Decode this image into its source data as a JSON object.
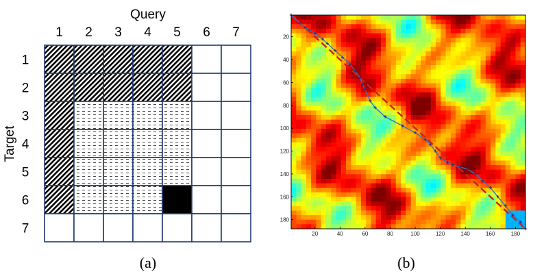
{
  "panel_a": {
    "title": "Query",
    "side_label": "Target",
    "column_labels": [
      "1",
      "2",
      "3",
      "4",
      "5",
      "6",
      "7"
    ],
    "row_labels": [
      "1",
      "2",
      "3",
      "4",
      "5",
      "6",
      "7"
    ],
    "grid_color": "#1f3a6e",
    "caption": "(a)",
    "cells": [
      [
        "hatch",
        "hatch",
        "hatch",
        "hatch",
        "hatch",
        "empty",
        "empty"
      ],
      [
        "hatch",
        "hatch",
        "hatch",
        "hatch",
        "hatch",
        "empty",
        "empty"
      ],
      [
        "hatch",
        "dash",
        "dash",
        "dash",
        "dash",
        "empty",
        "empty"
      ],
      [
        "hatch",
        "dash",
        "dash",
        "dash",
        "dash",
        "empty",
        "empty"
      ],
      [
        "hatch",
        "dash",
        "dash",
        "dash",
        "dash",
        "empty",
        "empty"
      ],
      [
        "hatch",
        "dash",
        "dash",
        "dash",
        "black",
        "empty",
        "empty"
      ],
      [
        "empty",
        "empty",
        "empty",
        "empty",
        "empty",
        "empty",
        "empty"
      ]
    ]
  },
  "panel_b": {
    "caption": "(b)",
    "x_range": [
      1,
      188
    ],
    "y_range": [
      1,
      188
    ],
    "x_ticks": [
      "20",
      "40",
      "60",
      "80",
      "100",
      "120",
      "140",
      "160",
      "180"
    ],
    "y_ticks": [
      "20",
      "40",
      "60",
      "80",
      "100",
      "120",
      "140",
      "160",
      "180"
    ],
    "colormap": "jet",
    "optimal_path_color": "#3a72b8",
    "diagonal_color": "#c0281e",
    "optimal_path": [
      [
        1,
        1
      ],
      [
        8,
        8
      ],
      [
        12,
        12
      ],
      [
        16,
        14
      ],
      [
        20,
        17
      ],
      [
        26,
        22
      ],
      [
        30,
        26
      ],
      [
        36,
        32
      ],
      [
        42,
        38
      ],
      [
        48,
        44
      ],
      [
        52,
        50
      ],
      [
        56,
        56
      ],
      [
        58,
        62
      ],
      [
        60,
        66
      ],
      [
        64,
        76
      ],
      [
        68,
        82
      ],
      [
        76,
        90
      ],
      [
        90,
        98
      ],
      [
        100,
        104
      ],
      [
        108,
        110
      ],
      [
        112,
        114
      ],
      [
        116,
        120
      ],
      [
        120,
        126
      ],
      [
        126,
        130
      ],
      [
        130,
        132
      ],
      [
        136,
        134
      ],
      [
        142,
        136
      ],
      [
        148,
        140
      ],
      [
        154,
        146
      ],
      [
        160,
        152
      ],
      [
        166,
        160
      ],
      [
        172,
        168
      ],
      [
        178,
        176
      ],
      [
        184,
        182
      ],
      [
        188,
        188
      ]
    ]
  }
}
